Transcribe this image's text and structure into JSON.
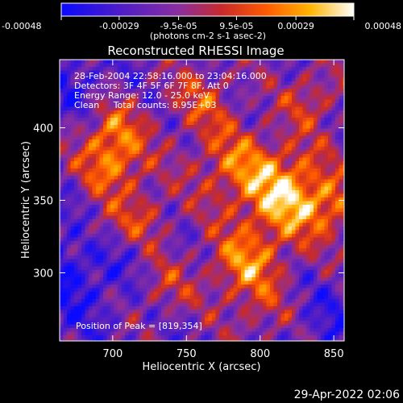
{
  "chart_data": {
    "type": "heatmap",
    "title": "Reconstructed RHESSI Image",
    "xlabel": "Heliocentric X (arcsec)",
    "ylabel": "Heliocentric Y (arcsec)",
    "xlim": [
      664,
      857
    ],
    "ylim": [
      253,
      447
    ],
    "x_ticks": [
      700,
      750,
      800,
      850
    ],
    "y_ticks": [
      300,
      350,
      400
    ],
    "colorbar": {
      "ticks": [
        "-0.00048",
        "-0.00029",
        "-9.5e-05",
        "9.5e-05",
        "0.00029",
        "0.00048"
      ],
      "tick_values": [
        -0.00048,
        -0.00029,
        -9.5e-05,
        9.5e-05,
        0.00029,
        0.00048
      ],
      "range": [
        -0.00048,
        0.00048
      ],
      "unit": "(photons cm-2 s-1 asec-2)",
      "colors": [
        "#0a0aff",
        "#4d1cc8",
        "#8a2ea0",
        "#c82a2a",
        "#ff5a00",
        "#ffb400",
        "#ffffff"
      ]
    },
    "annotations": [
      "28-Feb-2004 22:58:16.000 to 23:04:16.000",
      "Detectors: 3F 4F 5F 6F 7F 8F, Att 0",
      "Energy Range: 12.0 - 25.0 keV",
      "Clean     Total counts: 8.95E+03"
    ],
    "peak_label": "Position of Peak = [819,354]",
    "peak": [
      819,
      354
    ],
    "grid": false
  },
  "footer": {
    "date": "29-Apr-2022 02:06"
  }
}
